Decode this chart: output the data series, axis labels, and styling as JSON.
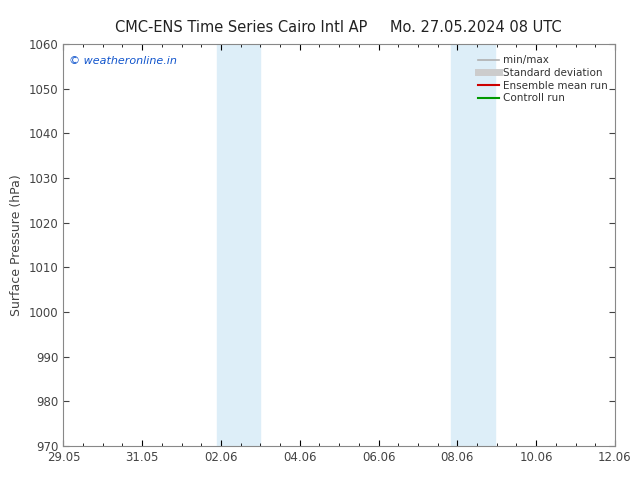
{
  "title_left": "CMC-ENS Time Series Cairo Intl AP",
  "title_right": "Mo. 27.05.2024 08 UTC",
  "ylabel": "Surface Pressure (hPa)",
  "ylim": [
    970,
    1060
  ],
  "yticks": [
    970,
    980,
    990,
    1000,
    1010,
    1020,
    1030,
    1040,
    1050,
    1060
  ],
  "xlim": [
    0,
    14
  ],
  "xtick_labels": [
    "29.05",
    "31.05",
    "02.06",
    "04.06",
    "06.06",
    "08.06",
    "10.06",
    "12.06"
  ],
  "xtick_positions": [
    0,
    2,
    4,
    6,
    8,
    10,
    12,
    14
  ],
  "shaded_bands": [
    {
      "x_start": 3.9,
      "x_end": 5.0,
      "color": "#ddeef8"
    },
    {
      "x_start": 9.85,
      "x_end": 10.95,
      "color": "#ddeef8"
    }
  ],
  "watermark_text": "© weatheronline.in",
  "watermark_color": "#1155cc",
  "legend_items": [
    {
      "label": "min/max",
      "color": "#b0b0b0",
      "lw": 1.2
    },
    {
      "label": "Standard deviation",
      "color": "#cccccc",
      "lw": 5
    },
    {
      "label": "Ensemble mean run",
      "color": "#cc0000",
      "lw": 1.5
    },
    {
      "label": "Controll run",
      "color": "#009900",
      "lw": 1.5
    }
  ],
  "background_color": "#ffffff",
  "plot_bg_color": "#ffffff",
  "tick_color": "#444444",
  "spine_color": "#888888",
  "tick_fontsize": 8.5,
  "ylabel_fontsize": 9,
  "title_fontsize": 10.5,
  "watermark_fontsize": 8,
  "legend_fontsize": 7.5
}
